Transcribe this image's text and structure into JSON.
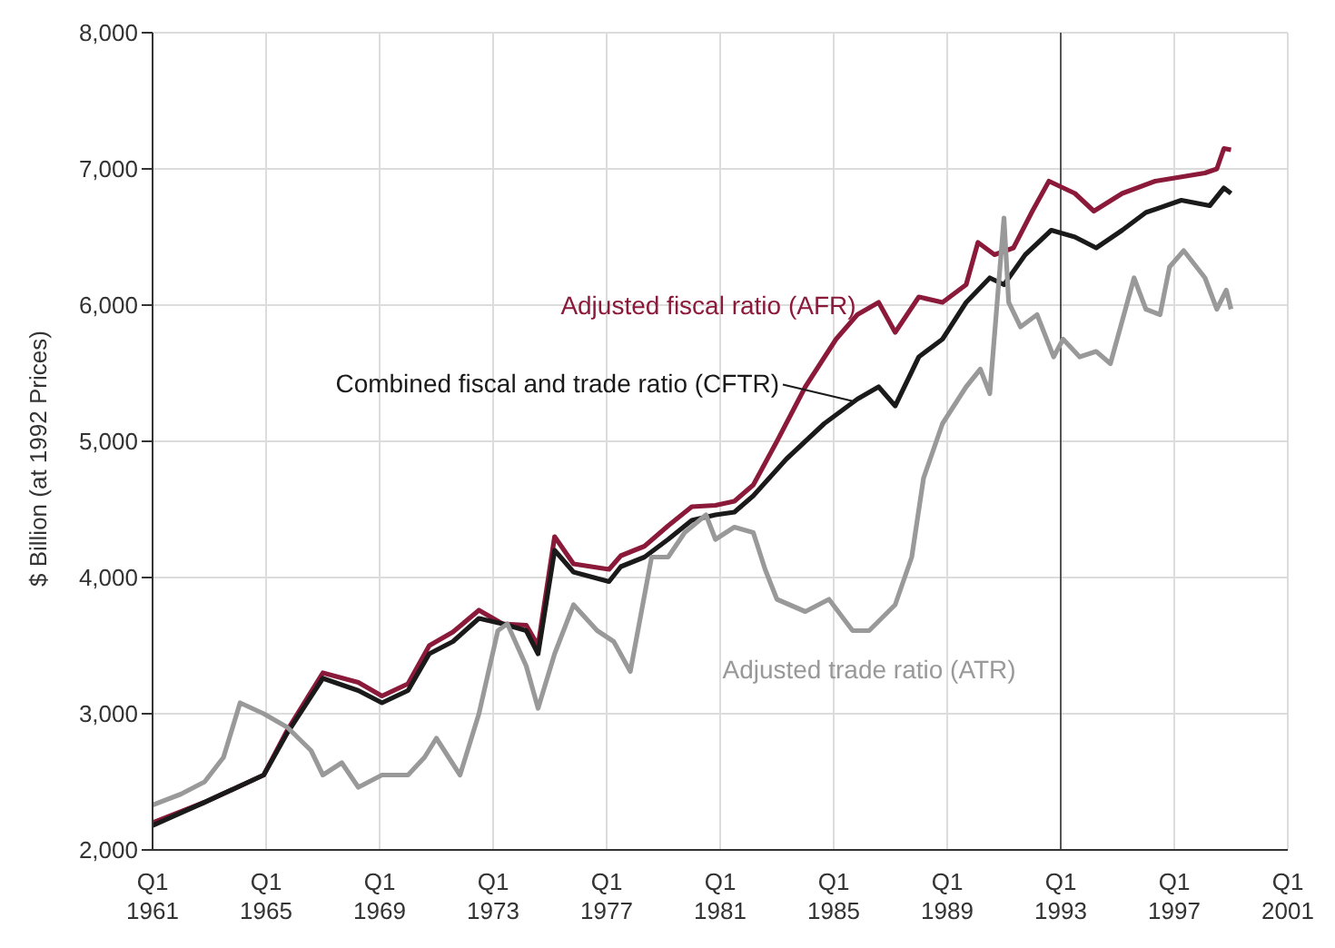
{
  "chart_data": {
    "type": "line",
    "ylabel": "$ Billion (at 1992 Prices)",
    "xlim": [
      "1961-01",
      "2001-01"
    ],
    "xticks": [
      {
        "value": "1961-01",
        "label": "Q1\n1961"
      },
      {
        "value": "1965-01",
        "label": "Q1\n1965"
      },
      {
        "value": "1969-01",
        "label": "Q1\n1969"
      },
      {
        "value": "1973-01",
        "label": "Q1\n1973"
      },
      {
        "value": "1977-01",
        "label": "Q1\n1977"
      },
      {
        "value": "1981-01",
        "label": "Q1\n1981"
      },
      {
        "value": "1985-01",
        "label": "Q1\n1985"
      },
      {
        "value": "1989-01",
        "label": "Q1\n1989"
      },
      {
        "value": "1993-01",
        "label": "Q1\n1993"
      },
      {
        "value": "1997-01",
        "label": "Q1\n1997"
      },
      {
        "value": "2001-01",
        "label": "Q1\n2001"
      }
    ],
    "ylim": [
      2000,
      8000
    ],
    "yticks": [
      {
        "value": 2000,
        "label": "2,000"
      },
      {
        "value": 3000,
        "label": "3,000"
      },
      {
        "value": 4000,
        "label": "4,000"
      },
      {
        "value": 5000,
        "label": "5,000"
      },
      {
        "value": 6000,
        "label": "6,000"
      },
      {
        "value": 7000,
        "label": "7,000"
      },
      {
        "value": 8000,
        "label": "8,000"
      }
    ],
    "grid": true,
    "marker": "none",
    "line_style": "solid",
    "ref_lines": [
      {
        "axis": "x",
        "value": "1993-01",
        "color": "#555555"
      }
    ],
    "series": [
      {
        "name": "Adjusted fiscal ratio (AFR)",
        "color": "#8b1a3a",
        "x": [
          "1961-01",
          "1962-11",
          "1964-12",
          "1965-10",
          "1967-01",
          "1968-04",
          "1969-02",
          "1970-01",
          "1970-10",
          "1971-08",
          "1972-07",
          "1973-05",
          "1974-03",
          "1974-08",
          "1975-03",
          "1975-11",
          "1977-02",
          "1977-07",
          "1978-05",
          "1979-03",
          "1980-01",
          "1980-11",
          "1981-07",
          "1982-03",
          "1983-01",
          "1984-01",
          "1985-02",
          "1985-11",
          "1986-08",
          "1987-03",
          "1988-01",
          "1988-11",
          "1989-09",
          "1990-02",
          "1990-09",
          "1991-05",
          "1992-01",
          "1992-08",
          "1993-07",
          "1994-03",
          "1995-03",
          "1996-05",
          "1998-02",
          "1998-07",
          "1998-10",
          "1999-01"
        ],
        "values": [
          2200,
          2350,
          2550,
          2880,
          3300,
          3230,
          3130,
          3220,
          3500,
          3600,
          3760,
          3660,
          3650,
          3500,
          4300,
          4100,
          4060,
          4160,
          4230,
          4380,
          4520,
          4530,
          4560,
          4680,
          5000,
          5400,
          5750,
          5930,
          6020,
          5800,
          6060,
          6020,
          6150,
          6460,
          6370,
          6420,
          6690,
          6910,
          6820,
          6690,
          6820,
          6910,
          6970,
          7000,
          7150,
          7140
        ]
      },
      {
        "name": "Combined fiscal and trade ratio (CFTR)",
        "color": "#1a1a1a",
        "x": [
          "1961-01",
          "1962-11",
          "1964-12",
          "1965-10",
          "1967-01",
          "1968-04",
          "1969-02",
          "1970-01",
          "1970-10",
          "1971-08",
          "1972-07",
          "1973-05",
          "1974-03",
          "1974-08",
          "1975-03",
          "1975-11",
          "1977-02",
          "1977-07",
          "1978-05",
          "1979-03",
          "1980-01",
          "1980-11",
          "1981-07",
          "1982-03",
          "1983-05",
          "1984-09",
          "1985-11",
          "1986-08",
          "1987-03",
          "1988-01",
          "1988-11",
          "1989-09",
          "1990-07",
          "1991-01",
          "1991-10",
          "1992-09",
          "1993-07",
          "1994-04",
          "1995-03",
          "1996-01",
          "1997-04",
          "1998-04",
          "1998-10",
          "1999-01"
        ],
        "values": [
          2180,
          2350,
          2550,
          2860,
          3260,
          3170,
          3080,
          3170,
          3440,
          3530,
          3700,
          3660,
          3610,
          3440,
          4200,
          4040,
          3970,
          4080,
          4150,
          4280,
          4420,
          4460,
          4480,
          4600,
          4870,
          5130,
          5310,
          5400,
          5260,
          5620,
          5750,
          6020,
          6200,
          6150,
          6370,
          6550,
          6500,
          6420,
          6550,
          6680,
          6770,
          6730,
          6860,
          6820
        ]
      },
      {
        "name": "Adjusted trade ratio (ATR)",
        "color": "#999999",
        "x": [
          "1961-01",
          "1962-01",
          "1962-11",
          "1963-07",
          "1964-02",
          "1964-12",
          "1965-10",
          "1966-08",
          "1967-01",
          "1967-09",
          "1968-04",
          "1969-02",
          "1970-01",
          "1970-08",
          "1971-01",
          "1971-11",
          "1972-07",
          "1973-03",
          "1973-07",
          "1974-03",
          "1974-08",
          "1975-03",
          "1975-11",
          "1976-09",
          "1977-04",
          "1977-11",
          "1978-08",
          "1979-03",
          "1979-10",
          "1980-07",
          "1980-11",
          "1981-07",
          "1982-03",
          "1982-08",
          "1983-01",
          "1984-01",
          "1984-11",
          "1985-09",
          "1986-04",
          "1987-03",
          "1987-10",
          "1988-03",
          "1988-11",
          "1989-09",
          "1990-03",
          "1990-07",
          "1991-01",
          "1991-03",
          "1991-08",
          "1992-03",
          "1992-10",
          "1993-02",
          "1993-09",
          "1994-04",
          "1994-10",
          "1995-08",
          "1996-01",
          "1996-07",
          "1996-11",
          "1997-05",
          "1998-02",
          "1998-07",
          "1998-11",
          "1999-01"
        ],
        "values": [
          2330,
          2410,
          2500,
          2680,
          3080,
          3000,
          2900,
          2730,
          2550,
          2640,
          2460,
          2550,
          2550,
          2680,
          2820,
          2550,
          3000,
          3610,
          3660,
          3350,
          3040,
          3440,
          3800,
          3610,
          3530,
          3310,
          4150,
          4150,
          4330,
          4460,
          4280,
          4370,
          4330,
          4060,
          3840,
          3750,
          3840,
          3610,
          3610,
          3800,
          4150,
          4730,
          5130,
          5400,
          5530,
          5350,
          6640,
          6020,
          5840,
          5930,
          5620,
          5750,
          5620,
          5660,
          5570,
          6200,
          5970,
          5930,
          6280,
          6400,
          6200,
          5970,
          6110,
          5970
        ]
      }
    ]
  }
}
